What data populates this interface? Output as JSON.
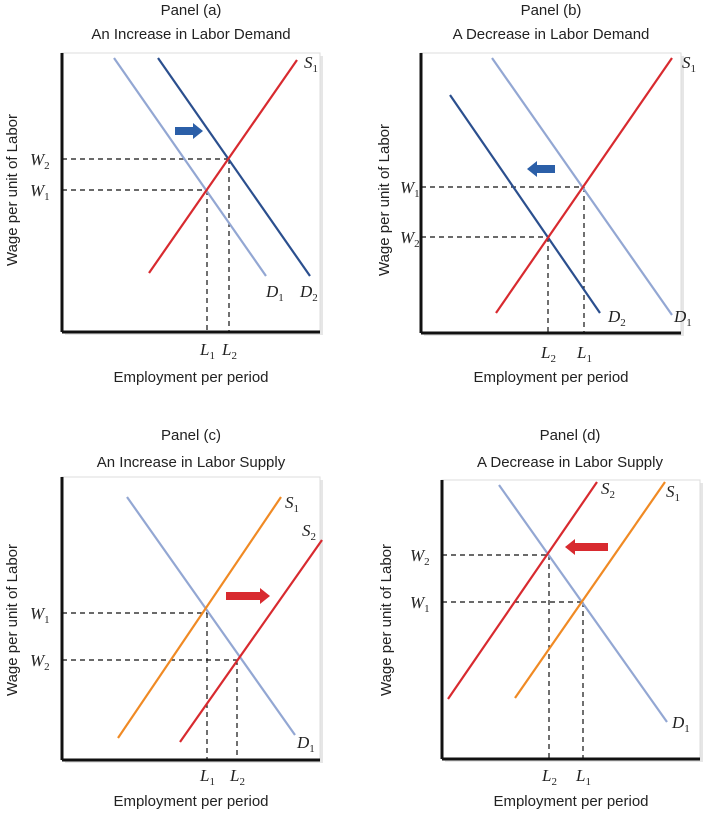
{
  "colors": {
    "demand_light": "#93a7d3",
    "demand_dark": "#2b4f8e",
    "supply_red": "#d82a2f",
    "supply_orange": "#f08a24",
    "arrow_blue": "#2b5fa8",
    "arrow_red": "#d82a2f"
  },
  "panels": [
    {
      "panel": "Panel (a)",
      "title": "An Increase in Labor Demand",
      "xlabel": "Employment per period",
      "ylabel": "Wage per unit of Labor",
      "wage_labels": [
        {
          "base": "W",
          "sub": "2"
        },
        {
          "base": "W",
          "sub": "1"
        }
      ],
      "emp_labels": [
        {
          "base": "L",
          "sub": "1"
        },
        {
          "base": "L",
          "sub": "2"
        }
      ],
      "curves": [
        {
          "base": "D",
          "sub": "1"
        },
        {
          "base": "D",
          "sub": "2"
        },
        {
          "base": "S",
          "sub": "1"
        }
      ],
      "shift": "right"
    },
    {
      "panel": "Panel (b)",
      "title": "A Decrease in Labor Demand",
      "xlabel": "Employment per period",
      "ylabel": "Wage per unit of Labor",
      "wage_labels": [
        {
          "base": "W",
          "sub": "1"
        },
        {
          "base": "W",
          "sub": "2"
        }
      ],
      "emp_labels": [
        {
          "base": "L",
          "sub": "2"
        },
        {
          "base": "L",
          "sub": "1"
        }
      ],
      "curves": [
        {
          "base": "D",
          "sub": "1"
        },
        {
          "base": "D",
          "sub": "2"
        },
        {
          "base": "S",
          "sub": "1"
        }
      ],
      "shift": "left"
    },
    {
      "panel": "Panel (c)",
      "title": "An Increase in Labor Supply",
      "xlabel": "Employment per period",
      "ylabel": "Wage per unit of Labor",
      "wage_labels": [
        {
          "base": "W",
          "sub": "1"
        },
        {
          "base": "W",
          "sub": "2"
        }
      ],
      "emp_labels": [
        {
          "base": "L",
          "sub": "1"
        },
        {
          "base": "L",
          "sub": "2"
        }
      ],
      "curves": [
        {
          "base": "D",
          "sub": "1"
        },
        {
          "base": "S",
          "sub": "1"
        },
        {
          "base": "S",
          "sub": "2"
        }
      ],
      "shift": "right"
    },
    {
      "panel": "Panel (d)",
      "title": "A Decrease in Labor Supply",
      "xlabel": "Employment per period",
      "ylabel": "Wage per unit of Labor",
      "wage_labels": [
        {
          "base": "W",
          "sub": "2"
        },
        {
          "base": "W",
          "sub": "1"
        }
      ],
      "emp_labels": [
        {
          "base": "L",
          "sub": "2"
        },
        {
          "base": "L",
          "sub": "1"
        }
      ],
      "curves": [
        {
          "base": "D",
          "sub": "1"
        },
        {
          "base": "S",
          "sub": "2"
        },
        {
          "base": "S",
          "sub": "1"
        }
      ],
      "shift": "left"
    }
  ]
}
